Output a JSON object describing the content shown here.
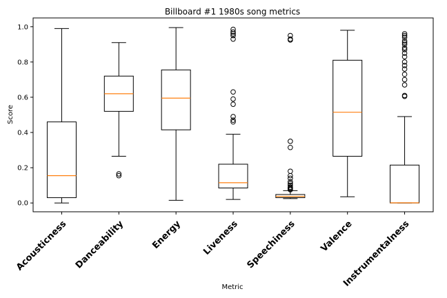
{
  "chart_data": {
    "type": "box",
    "title": "Billboard #1 1980s song metrics",
    "xlabel": "Metric",
    "ylabel": "Score",
    "ylim": [
      -0.05,
      1.05
    ],
    "yticks": [
      "0.0",
      "0.2",
      "0.4",
      "0.6",
      "0.8",
      "1.0"
    ],
    "grid": false,
    "median_color": "#ff7f0e",
    "categories": [
      "Acousticness",
      "Danceability",
      "Energy",
      "Liveness",
      "Speechiness",
      "Valence",
      "Instrumentalness"
    ],
    "boxes": [
      {
        "name": "Acousticness",
        "whisker_low": 0.0,
        "q1": 0.03,
        "median": 0.155,
        "q3": 0.46,
        "whisker_high": 0.99,
        "outliers": []
      },
      {
        "name": "Danceability",
        "whisker_low": 0.265,
        "q1": 0.52,
        "median": 0.62,
        "q3": 0.72,
        "whisker_high": 0.91,
        "outliers": [
          0.155,
          0.165
        ]
      },
      {
        "name": "Energy",
        "whisker_low": 0.015,
        "q1": 0.415,
        "median": 0.595,
        "q3": 0.755,
        "whisker_high": 0.995,
        "outliers": []
      },
      {
        "name": "Liveness",
        "whisker_low": 0.02,
        "q1": 0.085,
        "median": 0.115,
        "q3": 0.22,
        "whisker_high": 0.39,
        "outliers": [
          0.46,
          0.47,
          0.49,
          0.56,
          0.59,
          0.63,
          0.93,
          0.95,
          0.96,
          0.97,
          0.985
        ]
      },
      {
        "name": "Speechiness",
        "whisker_low": 0.025,
        "q1": 0.03,
        "median": 0.037,
        "q3": 0.048,
        "whisker_high": 0.07,
        "outliers": [
          0.075,
          0.08,
          0.085,
          0.09,
          0.1,
          0.11,
          0.12,
          0.14,
          0.155,
          0.18,
          0.315,
          0.35,
          0.925,
          0.93,
          0.95
        ]
      },
      {
        "name": "Valence",
        "whisker_low": 0.035,
        "q1": 0.265,
        "median": 0.515,
        "q3": 0.81,
        "whisker_high": 0.98,
        "outliers": []
      },
      {
        "name": "Instrumentalness",
        "whisker_low": 0.0,
        "q1": 0.0,
        "median": 0.001,
        "q3": 0.215,
        "whisker_high": 0.49,
        "outliers": [
          0.605,
          0.61,
          0.67,
          0.7,
          0.73,
          0.76,
          0.78,
          0.8,
          0.83,
          0.85,
          0.87,
          0.88,
          0.9,
          0.91,
          0.92,
          0.94,
          0.95,
          0.96
        ]
      }
    ]
  }
}
